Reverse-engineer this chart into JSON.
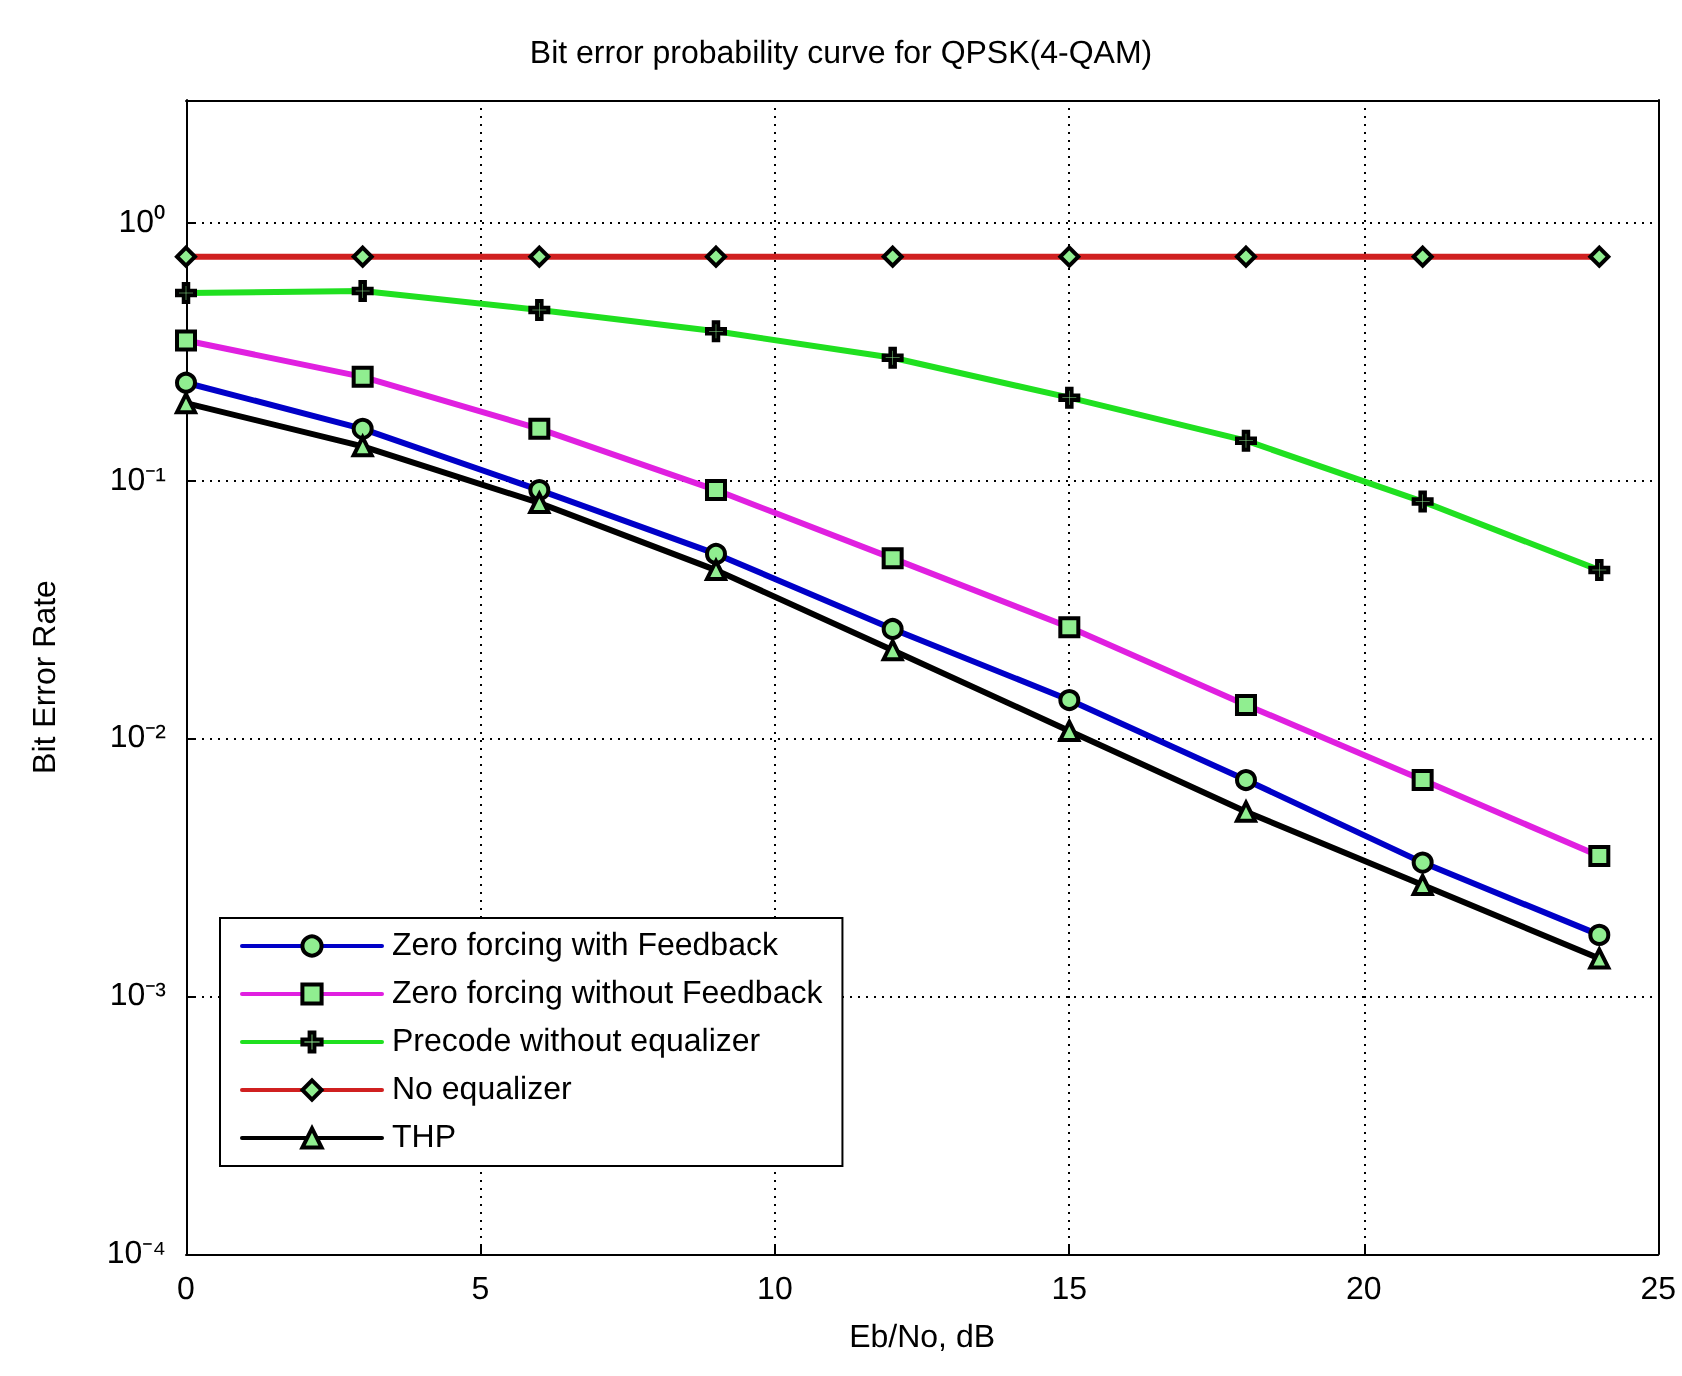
{
  "chart_data": {
    "type": "line",
    "title": "Bit error probability curve for QPSK(4-QAM)",
    "xlabel": "Eb/No, dB",
    "ylabel": "Bit Error Rate",
    "x": [
      0,
      3,
      6,
      9,
      12,
      15,
      18,
      21,
      24
    ],
    "series": [
      {
        "name": "Zero forcing with Feedback",
        "color": "#0000c8",
        "marker": "circle",
        "values": [
          0.24,
          0.159,
          0.092,
          0.052,
          0.0266,
          0.0141,
          0.0069,
          0.0033,
          0.00173
        ]
      },
      {
        "name": "Zero forcing without Feedback",
        "color": "#e020e0",
        "marker": "square",
        "values": [
          0.35,
          0.253,
          0.159,
          0.092,
          0.05,
          0.027,
          0.0135,
          0.0069,
          0.0035
        ]
      },
      {
        "name": "Precode without equalizer",
        "color": "#20e020",
        "marker": "cross",
        "values": [
          0.535,
          0.545,
          0.46,
          0.38,
          0.3,
          0.21,
          0.143,
          0.083,
          0.045
        ]
      },
      {
        "name": "No equalizer",
        "color": "#d02020",
        "marker": "diamond",
        "values": [
          0.74,
          0.74,
          0.74,
          0.74,
          0.74,
          0.74,
          0.74,
          0.74,
          0.74
        ]
      },
      {
        "name": "THP",
        "color": "#000000",
        "marker": "triangle",
        "values": [
          0.2,
          0.136,
          0.082,
          0.045,
          0.022,
          0.0107,
          0.0052,
          0.0027,
          0.0014
        ]
      }
    ],
    "xlim": [
      0,
      25
    ],
    "xticks": [
      0,
      5,
      10,
      15,
      20,
      25
    ],
    "log": true,
    "ylim": [
      0.0001,
      3
    ],
    "yticks": [
      {
        "value": 0.0001,
        "label": "10⁻⁴"
      },
      {
        "value": 0.001,
        "label": "10⁻³"
      },
      {
        "value": 0.01,
        "label": "10⁻²"
      },
      {
        "value": 0.1,
        "label": "10⁻¹"
      },
      {
        "value": 1,
        "label": "10⁰"
      }
    ],
    "grid": true,
    "legend": "bottom left",
    "line_style": "solid"
  }
}
